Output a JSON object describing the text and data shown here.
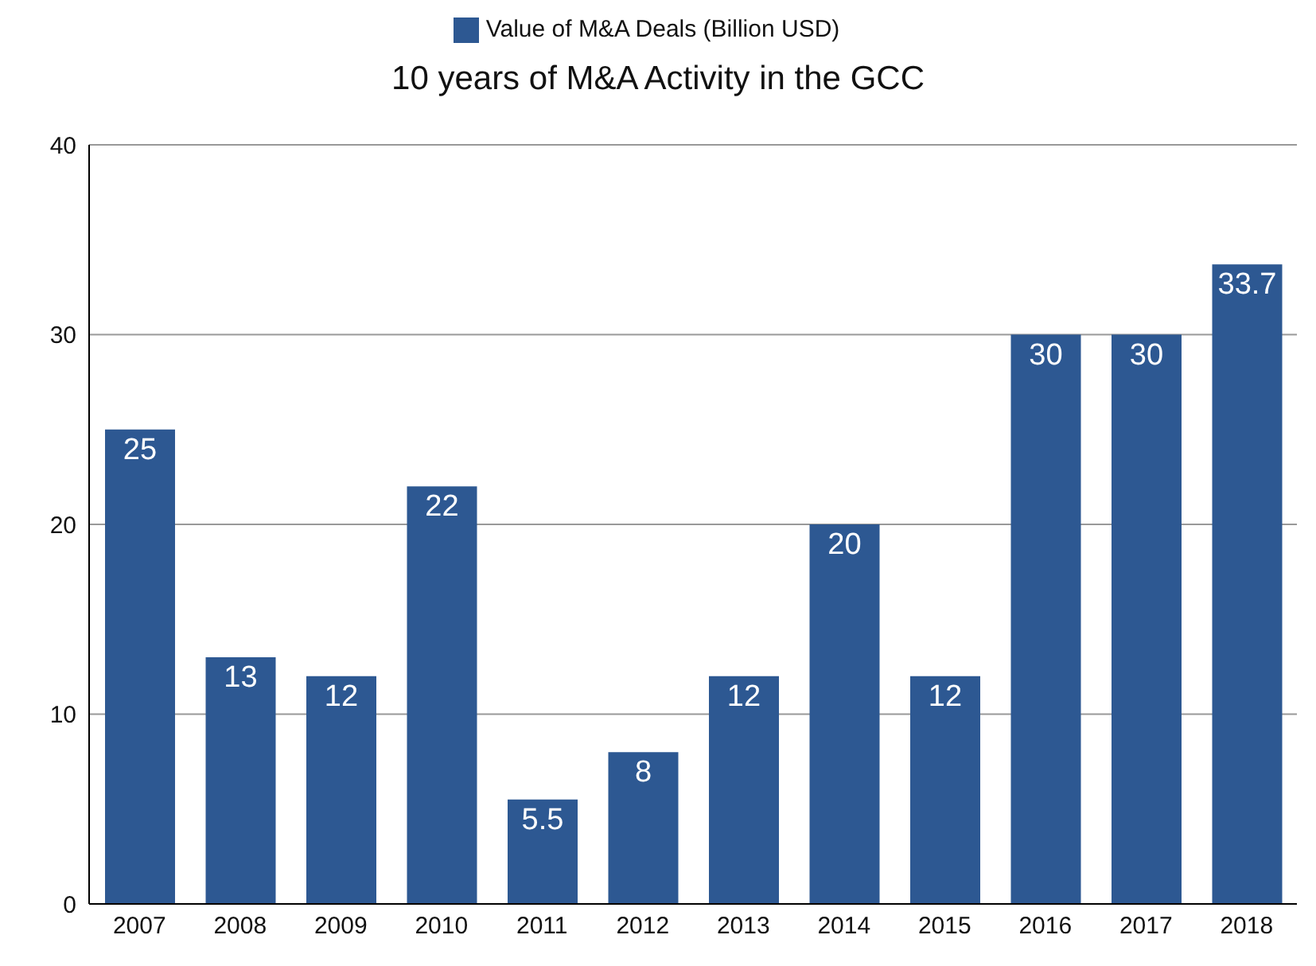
{
  "chart_data": {
    "type": "bar",
    "title": "10 years of M&A Activity in the GCC",
    "categories": [
      "2007",
      "2008",
      "2009",
      "2010",
      "2011",
      "2012",
      "2013",
      "2014",
      "2015",
      "2016",
      "2017",
      "2018"
    ],
    "series": [
      {
        "name": "Value of M&A Deals (Billion USD)",
        "color": "#2d5892",
        "values": [
          25,
          13,
          12,
          22,
          5.5,
          8,
          12,
          20,
          12,
          30,
          30,
          33.7
        ]
      }
    ],
    "ylim": [
      0,
      40
    ],
    "yticks": [
      0,
      10,
      20,
      30,
      40
    ],
    "grid": "y",
    "legend": "top",
    "data_labels": true
  }
}
